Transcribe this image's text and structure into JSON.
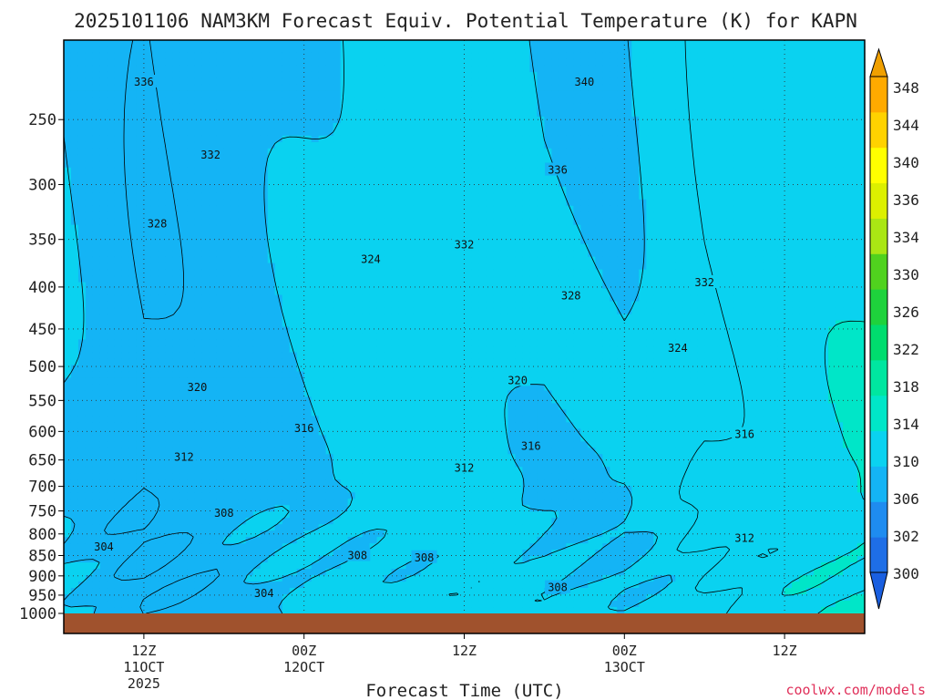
{
  "chart_data": {
    "type": "filled-contour",
    "title": "2025101106 NAM3KM Forecast Equiv. Potential Temperature (K) for KAPN",
    "xlabel": "Forecast Time (UTC)",
    "ylabel": "",
    "y_scale": "log-pressure (hPa, inverted)",
    "ylim": [
      1000,
      200
    ],
    "xlim_hours": [
      0,
      60
    ],
    "y_ticks": [
      250,
      300,
      350,
      400,
      450,
      500,
      550,
      600,
      650,
      700,
      750,
      800,
      850,
      900,
      950,
      1000
    ],
    "x_ticks": [
      {
        "hour": 6,
        "label": "12Z",
        "day": "11OCT",
        "year": "2025"
      },
      {
        "hour": 18,
        "label": "00Z",
        "day": "12OCT",
        "year": ""
      },
      {
        "hour": 30,
        "label": "12Z",
        "day": "",
        "year": ""
      },
      {
        "hour": 42,
        "label": "00Z",
        "day": "13OCT",
        "year": ""
      },
      {
        "hour": 54,
        "label": "12Z",
        "day": "",
        "year": ""
      }
    ],
    "colorbar": {
      "units": "K",
      "levels": [
        300,
        302,
        306,
        310,
        314,
        318,
        322,
        326,
        330,
        334,
        336,
        340,
        344,
        348
      ],
      "labels": [
        "348",
        "344",
        "340",
        "336",
        "334",
        "330",
        "326",
        "322",
        "318",
        "314",
        "310",
        "306",
        "302",
        "300"
      ],
      "colors": [
        "#1e6ee6",
        "#1e8cf0",
        "#14b4f5",
        "#0ad2f0",
        "#00e6c8",
        "#00e6a0",
        "#00dc6e",
        "#1ed23c",
        "#50d21e",
        "#aae614",
        "#dcf000",
        "#ffff00",
        "#ffd200",
        "#ffaa00"
      ]
    },
    "contour_labels": [
      {
        "text": "336",
        "hour": 6,
        "p": 225
      },
      {
        "text": "340",
        "hour": 39,
        "p": 225
      },
      {
        "text": "332",
        "hour": 11,
        "p": 276
      },
      {
        "text": "336",
        "hour": 37,
        "p": 288
      },
      {
        "text": "328",
        "hour": 7,
        "p": 335
      },
      {
        "text": "332",
        "hour": 30,
        "p": 355
      },
      {
        "text": "324",
        "hour": 23,
        "p": 370
      },
      {
        "text": "332",
        "hour": 48,
        "p": 395
      },
      {
        "text": "328",
        "hour": 38,
        "p": 410
      },
      {
        "text": "324",
        "hour": 46,
        "p": 475
      },
      {
        "text": "320",
        "hour": 10,
        "p": 530
      },
      {
        "text": "320",
        "hour": 34,
        "p": 520
      },
      {
        "text": "316",
        "hour": 18,
        "p": 595
      },
      {
        "text": "316",
        "hour": 35,
        "p": 625
      },
      {
        "text": "316",
        "hour": 51,
        "p": 605
      },
      {
        "text": "312",
        "hour": 9,
        "p": 645
      },
      {
        "text": "312",
        "hour": 30,
        "p": 665
      },
      {
        "text": "308",
        "hour": 12,
        "p": 755
      },
      {
        "text": "312",
        "hour": 51,
        "p": 810
      },
      {
        "text": "304",
        "hour": 3,
        "p": 830
      },
      {
        "text": "308",
        "hour": 22,
        "p": 850
      },
      {
        "text": "308",
        "hour": 27,
        "p": 855
      },
      {
        "text": "304",
        "hour": 15,
        "p": 945
      },
      {
        "text": "308",
        "hour": 37,
        "p": 930
      }
    ],
    "profile_hours": [
      0,
      6,
      12,
      18,
      24,
      30,
      36,
      42,
      48,
      54,
      60
    ],
    "profile_p": [
      1000,
      950,
      900,
      850,
      800,
      750,
      700,
      650,
      600,
      550,
      500,
      450,
      400,
      350,
      300,
      250,
      200
    ],
    "theta_e": [
      [
        310,
        307,
        305,
        306,
        307,
        308,
        310,
        312,
        315,
        317,
        319,
        322,
        325,
        327,
        329,
        332,
        335
      ],
      [
        308,
        304,
        302,
        304,
        306,
        308,
        310,
        312,
        315,
        318,
        320,
        323,
        326,
        328,
        331,
        334,
        337
      ],
      [
        309,
        304,
        302,
        304,
        306,
        309,
        311,
        313,
        316,
        319,
        321,
        323,
        326,
        329,
        332,
        334,
        338
      ],
      [
        310,
        306,
        304,
        305,
        307,
        309,
        311,
        313,
        316,
        319,
        321,
        323,
        325,
        328,
        331,
        334,
        339
      ],
      [
        311,
        307,
        306,
        306,
        307,
        309,
        311,
        313,
        316,
        319,
        321,
        323,
        327,
        331,
        334,
        337,
        341
      ],
      [
        311,
        307,
        306,
        306,
        307,
        309,
        311,
        313,
        316,
        319,
        321,
        324,
        329,
        333,
        336,
        339,
        341
      ],
      [
        310,
        306,
        305,
        306,
        307,
        310,
        312,
        314,
        317,
        320,
        322,
        325,
        329,
        333,
        336,
        339,
        341
      ],
      [
        310,
        307,
        306,
        307,
        309,
        310,
        312,
        314,
        317,
        320,
        323,
        326,
        330,
        334,
        337,
        339,
        341
      ],
      [
        312,
        309,
        308,
        309,
        310,
        311,
        312,
        315,
        317,
        320,
        323,
        326,
        331,
        335,
        337,
        339,
        342
      ],
      [
        313,
        311,
        309,
        310,
        310,
        311,
        312,
        315,
        317,
        320,
        324,
        328,
        332,
        336,
        338,
        340,
        343
      ],
      [
        314,
        313,
        312,
        312,
        312,
        313,
        313,
        315,
        316,
        318,
        324,
        330,
        334,
        337,
        339,
        341,
        346
      ]
    ]
  },
  "footer": {
    "credit": "coolwx.com/models"
  }
}
